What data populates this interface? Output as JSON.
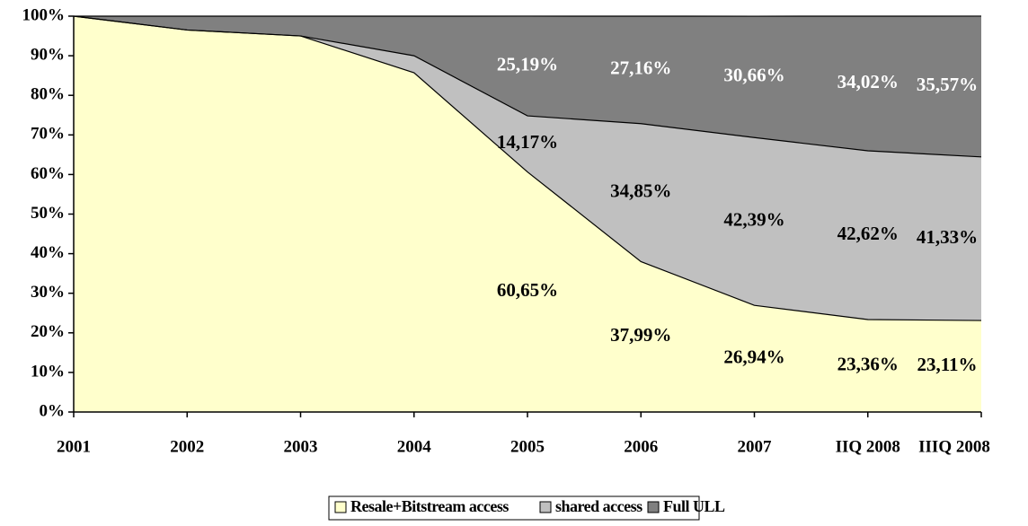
{
  "chart_data": {
    "type": "stacked_area",
    "categories": [
      "2001",
      "2002",
      "2003",
      "2004",
      "2005",
      "2006",
      "2007",
      "IIQ 2008",
      "IIIQ 2008"
    ],
    "series": [
      {
        "name": "Resale+Bitstream access",
        "color": "#ffffcc",
        "label_color": "#000000",
        "values": [
          100,
          96.5,
          95,
          85.7,
          60.65,
          37.99,
          26.94,
          23.36,
          23.11
        ],
        "value_labels": [
          null,
          null,
          null,
          null,
          "60,65%",
          "37,99%",
          "26,94%",
          "23,36%",
          "23,11%"
        ]
      },
      {
        "name": "shared access",
        "color": "#c0c0c0",
        "label_color": "#000000",
        "values": [
          0,
          0,
          0,
          4.3,
          14.17,
          34.85,
          42.39,
          42.62,
          41.33
        ],
        "value_labels": [
          null,
          null,
          null,
          null,
          "14,17%",
          "34,85%",
          "42,39%",
          "42,62%",
          "41,33%"
        ]
      },
      {
        "name": "Full ULL",
        "color": "#808080",
        "label_color": "#ffffff",
        "values": [
          0,
          3.5,
          5,
          10,
          25.19,
          27.16,
          30.66,
          34.02,
          35.57
        ],
        "value_labels": [
          null,
          null,
          null,
          null,
          "25,19%",
          "27,16%",
          "30,66%",
          "34,02%",
          "35,57%"
        ]
      }
    ],
    "ylim": [
      0,
      100
    ],
    "yticks": [
      {
        "value": 0,
        "label": "0%"
      },
      {
        "value": 10,
        "label": "10%"
      },
      {
        "value": 20,
        "label": "20%"
      },
      {
        "value": 30,
        "label": "30%"
      },
      {
        "value": 40,
        "label": "40%"
      },
      {
        "value": 50,
        "label": "50%"
      },
      {
        "value": 60,
        "label": "60%"
      },
      {
        "value": 70,
        "label": "70%"
      },
      {
        "value": 80,
        "label": "80%"
      },
      {
        "value": 90,
        "label": "90%"
      },
      {
        "value": 100,
        "label": "100%"
      }
    ],
    "legend": "bottom"
  }
}
